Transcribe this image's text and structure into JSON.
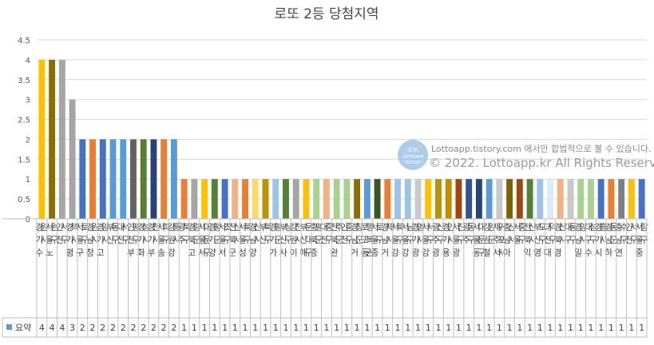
{
  "chart_data": {
    "type": "bar",
    "title": "로또 2등 당첨지역",
    "xlabel": "",
    "ylabel": "",
    "ylim": [
      0,
      4.5
    ],
    "yticks": [
      "0",
      "0.5",
      "1",
      "1.5",
      "2",
      "2.5",
      "3",
      "3.5",
      "4",
      "4.5"
    ],
    "grid": true,
    "legend": "bottom-left (data table)",
    "categories": [
      "경기수원시",
      "서울노원구",
      "인천서구",
      "경기평택시",
      "서울구로구",
      "경남창원시",
      "경기고양시",
      "부산동구",
      "대전서구",
      "인천부평구",
      "경기화성시",
      "경기부천시",
      "서울송파구",
      "강원강릉시",
      "광주북구",
      "경북고령군",
      "서울서대문구",
      "경기양평군",
      "서울서초구",
      "전북군산시",
      "서울성북구",
      "경남양산시",
      "부산북구",
      "경기가평군",
      "부산사상구",
      "강원이천시",
      "부산해운대구",
      "충북증평군",
      "대전중구",
      "전북완주군",
      "인천중구",
      "경남거창군",
      "로또동행복권",
      "서울종로구",
      "경남거제시",
      "서울강북구",
      "서울강남구",
      "경기광명시",
      "서울강서구",
      "광주광산구",
      "경기용인시",
      "서울광진구",
      "광주동구",
      "서울동대문구",
      "강원철원군",
      "제주서귀포시",
      "충남아산시",
      "서울중구",
      "전북익산시",
      "부산영도구",
      "대전대덕구",
      "경북경산시",
      "대구동구",
      "경남밀양시",
      "대구수성구",
      "경기시흥시",
      "경남하동군",
      "충남연수구",
      "인천서구",
      "서울중랑구"
    ],
    "series": [
      {
        "name": "요약",
        "values": [
          4,
          4,
          4,
          3,
          2,
          2,
          2,
          2,
          2,
          2,
          2,
          2,
          2,
          2,
          1,
          1,
          1,
          1,
          1,
          1,
          1,
          1,
          1,
          1,
          1,
          1,
          1,
          1,
          1,
          1,
          1,
          1,
          1,
          1,
          1,
          1,
          1,
          1,
          1,
          1,
          1,
          1,
          1,
          1,
          1,
          1,
          1,
          1,
          1,
          1,
          1,
          1,
          1,
          1,
          1,
          1,
          1,
          1,
          1,
          1
        ]
      }
    ],
    "bar_colors": [
      "#FFC000",
      "#8C6D00",
      "#A5A5A5",
      "#A5A5A5",
      "#4472C4",
      "#ED7D31",
      "#4472C4",
      "#5B9BD5",
      "#5B9BD5",
      "#636363",
      "#548235",
      "#264478",
      "#ED7D31",
      "#5B9BD5",
      "#ED7D31",
      "#A5A5A5",
      "#FFC000",
      "#548235",
      "#4472C4",
      "#F4B183",
      "#ED7D31",
      "#FFD966",
      "#BF9000",
      "#9DC3E6",
      "#548235",
      "#A5A5A5",
      "#FFC000",
      "#A9D18E",
      "#F4B183",
      "#A9D18E",
      "#A9D18E",
      "#8C6D00",
      "#5B9BD5",
      "#375623",
      "#ED7D31",
      "#9DC3E6",
      "#9DC3E6",
      "#C9C9C9",
      "#FFC000",
      "#BF9000",
      "#BF9000",
      "#9E480E",
      "#2F5597",
      "#264478",
      "#5B9BD5",
      "#C9C9C9",
      "#7F6000",
      "#9E480E",
      "#548235",
      "#9DC3E6",
      "#DEEBF7",
      "#F4B183",
      "#C9C9C9",
      "#A9D18E",
      "#A9D18E",
      "#4472C4",
      "#ED7D31",
      "#808080",
      "#FFC000",
      "#4472C4"
    ]
  },
  "watermark": {
    "logo_line1": "로또",
    "logo_line2": "LOTTOAPP",
    "logo_line3": "TISTORY",
    "line1": "Lottoapp.tistory.com 에서만 합법적으로 볼 수 있습니다.",
    "line2": "© 2022. Lottoapp.kr All Rights Reserved."
  },
  "legend_key_color": "#5B9BD5"
}
